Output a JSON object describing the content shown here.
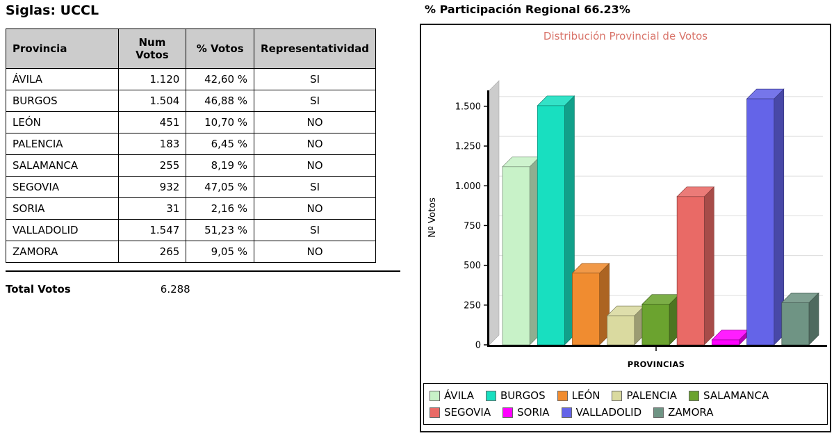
{
  "left": {
    "title": "Siglas: UCCL",
    "table": {
      "headers": [
        "Provincia",
        "Num Votos",
        "% Votos",
        "Representatividad"
      ],
      "rows": [
        {
          "provincia": "ÁVILA",
          "votos": "1.120",
          "pct": "42,60 %",
          "rep": "SI"
        },
        {
          "provincia": "BURGOS",
          "votos": "1.504",
          "pct": "46,88 %",
          "rep": "SI"
        },
        {
          "provincia": "LEÓN",
          "votos": "451",
          "pct": "10,70 %",
          "rep": "NO"
        },
        {
          "provincia": "PALENCIA",
          "votos": "183",
          "pct": "6,45 %",
          "rep": "NO"
        },
        {
          "provincia": "SALAMANCA",
          "votos": "255",
          "pct": "8,19 %",
          "rep": "NO"
        },
        {
          "provincia": "SEGOVIA",
          "votos": "932",
          "pct": "47,05 %",
          "rep": "SI"
        },
        {
          "provincia": "SORIA",
          "votos": "31",
          "pct": "2,16 %",
          "rep": "NO"
        },
        {
          "provincia": "VALLADOLID",
          "votos": "1.547",
          "pct": "51,23 %",
          "rep": "SI"
        },
        {
          "provincia": "ZAMORA",
          "votos": "265",
          "pct": "9,05 %",
          "rep": "NO"
        }
      ]
    },
    "total_label": "Total Votos",
    "total_value": "6.288"
  },
  "right": {
    "title": "% Participación Regional 66.23%"
  },
  "chart_data": {
    "type": "bar",
    "title": "Distribución Provincial de Votos",
    "title_color": "#d9756b",
    "xlabel": "PROVINCIAS",
    "ylabel": "Nº Votos",
    "ylim": [
      0,
      1600
    ],
    "yticks": [
      0,
      250,
      500,
      750,
      1000,
      1250,
      1500
    ],
    "ytick_labels": [
      "0",
      "250",
      "500",
      "750",
      "1.000",
      "1.250",
      "1.500"
    ],
    "grid": true,
    "legend_position": "bottom",
    "style": "3d-bars",
    "categories": [
      "ÁVILA",
      "BURGOS",
      "LEÓN",
      "PALENCIA",
      "SALAMANCA",
      "SEGOVIA",
      "SORIA",
      "VALLADOLID",
      "ZAMORA"
    ],
    "values": [
      1120,
      1504,
      451,
      183,
      255,
      932,
      31,
      1547,
      265
    ],
    "colors": [
      "#c8f2c8",
      "#18dfc0",
      "#f08c30",
      "#dadaa0",
      "#6ba32f",
      "#e96a66",
      "#ff00ff",
      "#6464e8",
      "#6f9484"
    ],
    "legend_rows": [
      [
        "ÁVILA",
        "BURGOS",
        "LEÓN",
        "PALENCIA",
        "SALAMANCA"
      ],
      [
        "SEGOVIA",
        "SORIA",
        "VALLADOLID",
        "ZAMORA"
      ]
    ]
  }
}
